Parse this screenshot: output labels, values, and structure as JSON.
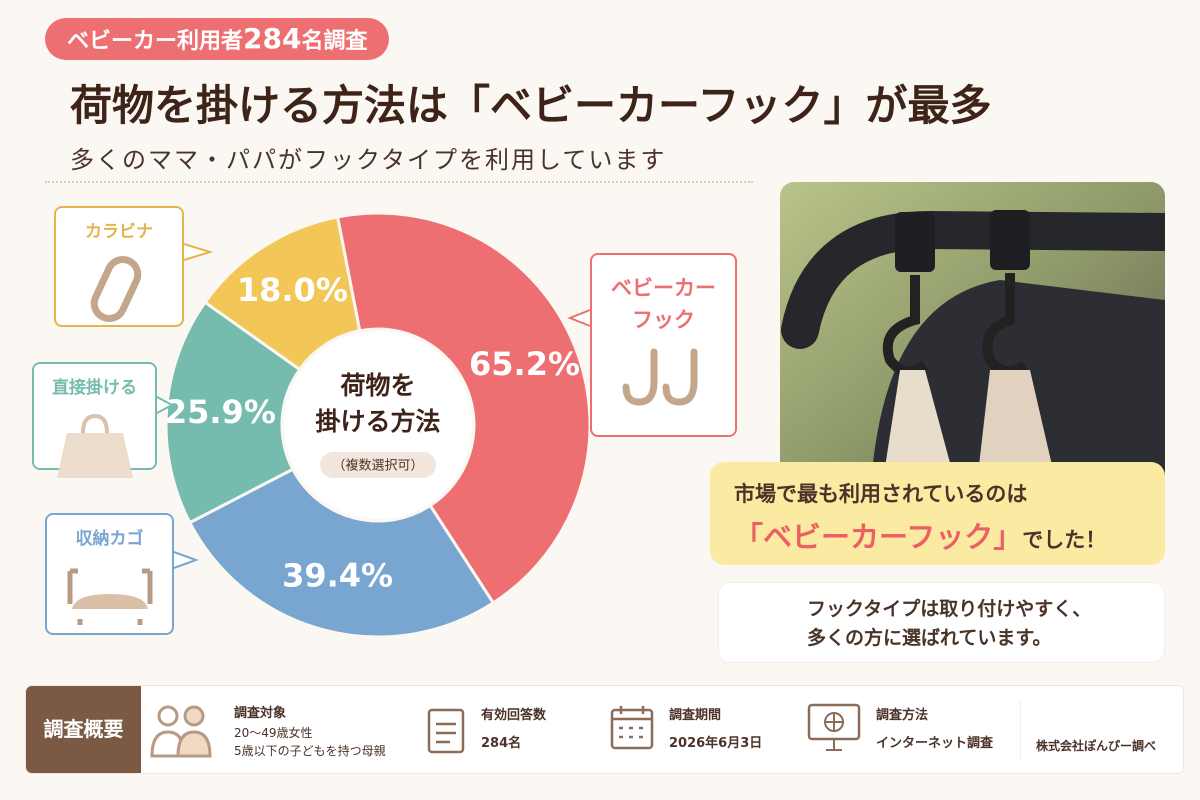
{
  "badge": {
    "before": "ベビーカー利用者",
    "number": "284",
    "after": "名調査"
  },
  "title": "荷物を掛ける方法は「ベビーカーフック」が最多",
  "subtitle": "多くのママ・パパがフックタイプを利用しています",
  "chart_data": {
    "type": "donut",
    "center_title": [
      "荷物を",
      "掛ける方法"
    ],
    "center_note": "（複数選択可）",
    "categories": [
      "ベビーカーフック",
      "収納カゴ",
      "直接掛ける",
      "カラビナ"
    ],
    "values": [
      65.2,
      39.4,
      25.9,
      18.0
    ],
    "value_labels": [
      "65.2%",
      "39.4%",
      "25.9%",
      "18.0%"
    ],
    "colors": [
      "#ee6f72",
      "#79a5d1",
      "#76bcae",
      "#f3c757"
    ]
  },
  "highlight": {
    "line1": "市場で最も利用されているのは",
    "emphasis": "「ベビーカーフック」",
    "after": "でした！"
  },
  "note": [
    "フックタイプは取り付けやすく、",
    "多くの方に選ばれています。"
  ],
  "footer": {
    "heading": "調査概要",
    "items": [
      {
        "label": "調査対象",
        "lines": [
          "20〜49歳女性",
          "5歳以下の子どもを持つ母親"
        ]
      },
      {
        "label": "有効回答数",
        "lines": [
          "284名"
        ]
      },
      {
        "label": "調査期間",
        "lines": [
          "2026年6月3日"
        ]
      },
      {
        "label": "調査方法",
        "lines": [
          "インターネット調査"
        ]
      }
    ],
    "source": "株式会社ぽんぴー調べ"
  }
}
